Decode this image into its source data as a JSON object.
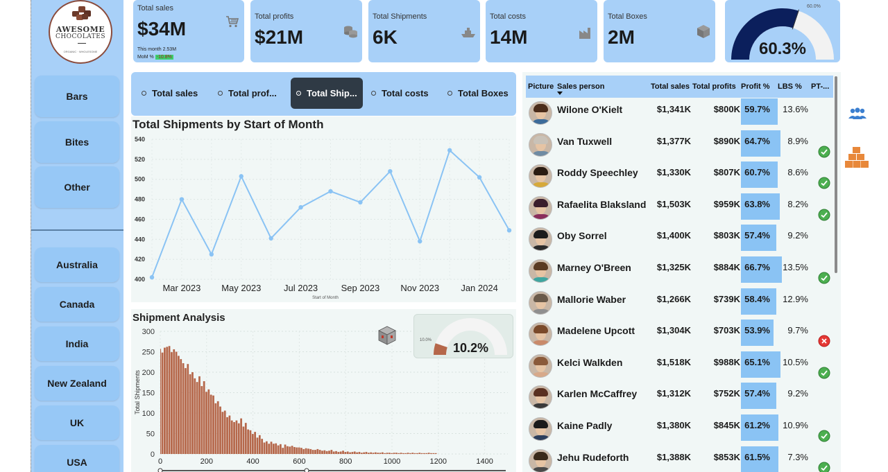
{
  "brand": {
    "line1": "AWESOME",
    "line2": "CHOCOLATES",
    "tagline": "ORGANIC · WHOLESOME"
  },
  "sidebar": {
    "products": [
      {
        "label": "Bars"
      },
      {
        "label": "Bites"
      },
      {
        "label": "Other"
      }
    ],
    "countries": [
      {
        "label": "Australia"
      },
      {
        "label": "Canada"
      },
      {
        "label": "India"
      },
      {
        "label": "New Zealand"
      },
      {
        "label": "UK"
      },
      {
        "label": "USA"
      }
    ]
  },
  "kpis": {
    "sales": {
      "label": "Total sales",
      "value": "$34M",
      "sub1": "This month 2.53M",
      "sub2_prefix": "MoM % ",
      "sub2_badge": "-10.8%",
      "icon": "cart-icon"
    },
    "profits": {
      "label": "Total profits",
      "value": "$21M",
      "icon": "coins-icon"
    },
    "shipments": {
      "label": "Total Shipments",
      "value": "6K",
      "icon": "ship-icon"
    },
    "costs": {
      "label": "Total costs",
      "value": "14M",
      "icon": "factory-icon"
    },
    "boxes": {
      "label": "Total Boxes",
      "value": "2M",
      "icon": "box-icon"
    }
  },
  "gauge": {
    "value": "60.3%",
    "target_label": "60.0%",
    "fill_fraction": 0.603,
    "fill_color": "#0b1f5c",
    "track_color": "#f2f2f2"
  },
  "slicer": {
    "options": [
      {
        "label": "Total sales"
      },
      {
        "label": "Total prof..."
      },
      {
        "label": "Total Ship..."
      },
      {
        "label": "Total costs"
      },
      {
        "label": "Total Boxes"
      }
    ],
    "selected": "Total Ship..."
  },
  "line_chart": {
    "title": "Total Shipments by Start of Month",
    "x_axis_label": "Start of Month",
    "tick_labels_x": [
      "Mar 2023",
      "May 2023",
      "Jul 2023",
      "Sep 2023",
      "Nov 2023",
      "Jan 2024"
    ],
    "tick_labels_y": [
      "540",
      "520",
      "500",
      "480",
      "460",
      "440",
      "420",
      "400"
    ]
  },
  "hist_chart": {
    "title": "Shipment Analysis",
    "y_axis_label": "Total Shipments",
    "tick_labels_x": [
      "0",
      "200",
      "400",
      "600",
      "800",
      "1000",
      "1200",
      "1400"
    ],
    "tick_labels_y": [
      "300",
      "250",
      "200",
      "150",
      "100",
      "50",
      "0"
    ]
  },
  "mini_gauge": {
    "value": "10.2%",
    "target_label": "10.0%",
    "fill_fraction": 0.102,
    "fill_color": "#b5674a"
  },
  "chart_data": [
    {
      "type": "line",
      "title": "Total Shipments by Start of Month",
      "xlabel": "Start of Month",
      "ylabel": "",
      "x": [
        "2023-02",
        "2023-03",
        "2023-04",
        "2023-05",
        "2023-06",
        "2023-07",
        "2023-08",
        "2023-09",
        "2023-10",
        "2023-11",
        "2023-12",
        "2024-01",
        "2024-02"
      ],
      "values": [
        402,
        480,
        425,
        503,
        441,
        472,
        488,
        477,
        508,
        438,
        529,
        502,
        449
      ],
      "ylim": [
        400,
        540
      ],
      "color": "#8ac3f4",
      "grid": true
    },
    {
      "type": "bar",
      "title": "Shipment Analysis",
      "xlabel": "",
      "ylabel": "Total Shipments",
      "bin_width": 10,
      "x_start": -5,
      "values": [
        257,
        248,
        260,
        262,
        264,
        249,
        256,
        250,
        240,
        232,
        222,
        210,
        220,
        195,
        200,
        185,
        176,
        190,
        166,
        178,
        152,
        158,
        145,
        143,
        124,
        129,
        116,
        103,
        106,
        90,
        94,
        82,
        78,
        82,
        75,
        87,
        67,
        76,
        60,
        58,
        49,
        54,
        40,
        46,
        37,
        28,
        31,
        25,
        30,
        25,
        26,
        21,
        24,
        15,
        23,
        19,
        18,
        20,
        17,
        16,
        16,
        15,
        12,
        14,
        13,
        12,
        10,
        10,
        12,
        10,
        8,
        9,
        7,
        8,
        10,
        6,
        7,
        5,
        6,
        8,
        5,
        6,
        4,
        5,
        6,
        4,
        5,
        3,
        4,
        5,
        3,
        4,
        3,
        4,
        3,
        3,
        4,
        2,
        3,
        3,
        2,
        3,
        3,
        2,
        3,
        2,
        2,
        3,
        2,
        3,
        2,
        2,
        3,
        2,
        2,
        2,
        3,
        2,
        2,
        2
      ],
      "ylim": [
        0,
        300
      ],
      "xlim": [
        0,
        1500
      ],
      "color": "#b5674a",
      "grid": true
    }
  ],
  "table": {
    "headers": {
      "picture": "Picture",
      "name": "Sales person",
      "sales": "Total sales",
      "profits": "Total profits",
      "profit_pct": "Profit %",
      "lbs": "LBS %",
      "pt": "PT-..."
    },
    "rows": [
      {
        "name": "Wilone O'Kielt",
        "sales": "$1,341K",
        "profits": "$800K",
        "profit_pct": "59.7%",
        "profit_frac": 0.597,
        "lbs": "13.6%",
        "status": "none",
        "hair": "#4a2c1a",
        "shirt": "#3c6b9a"
      },
      {
        "name": "Van Tuxwell",
        "sales": "$1,377K",
        "profits": "$890K",
        "profit_pct": "64.7%",
        "profit_frac": 0.647,
        "lbs": "8.9%",
        "status": "ok",
        "hair": "#c9c2b8",
        "shirt": "#6f8ba3"
      },
      {
        "name": "Roddy Speechley",
        "sales": "$1,330K",
        "profits": "$807K",
        "profit_pct": "60.7%",
        "profit_frac": 0.607,
        "lbs": "8.6%",
        "status": "ok",
        "hair": "#2a1c12",
        "shirt": "#d6a93a"
      },
      {
        "name": "Rafaelita Blaksland",
        "sales": "$1,503K",
        "profits": "$959K",
        "profit_pct": "63.8%",
        "profit_frac": 0.638,
        "lbs": "8.2%",
        "status": "ok",
        "hair": "#3a1d2c",
        "shirt": "#8a2e5c"
      },
      {
        "name": "Oby Sorrel",
        "sales": "$1,400K",
        "profits": "$803K",
        "profit_pct": "57.4%",
        "profit_frac": 0.574,
        "lbs": "9.2%",
        "status": "none",
        "hair": "#1c1c1c",
        "shirt": "#2b2b2b"
      },
      {
        "name": "Marney O'Breen",
        "sales": "$1,325K",
        "profits": "$884K",
        "profit_pct": "66.7%",
        "profit_frac": 0.667,
        "lbs": "13.5%",
        "status": "ok",
        "hair": "#5a3a22",
        "shirt": "#3fa6a0"
      },
      {
        "name": "Mallorie Waber",
        "sales": "$1,266K",
        "profits": "$739K",
        "profit_pct": "58.4%",
        "profit_frac": 0.584,
        "lbs": "12.9%",
        "status": "none",
        "hair": "#6a5a4a",
        "shirt": "#8f8f8f"
      },
      {
        "name": "Madelene Upcott",
        "sales": "$1,304K",
        "profits": "$703K",
        "profit_pct": "53.9%",
        "profit_frac": 0.539,
        "lbs": "9.7%",
        "status": "bad",
        "hair": "#7a4a2a",
        "shirt": "#c98a6a"
      },
      {
        "name": "Kelci Walkden",
        "sales": "$1,518K",
        "profits": "$988K",
        "profit_pct": "65.1%",
        "profit_frac": 0.651,
        "lbs": "10.5%",
        "status": "ok",
        "hair": "#8a5a3a",
        "shirt": "#d7a98a"
      },
      {
        "name": "Karlen McCaffrey",
        "sales": "$1,312K",
        "profits": "$752K",
        "profit_pct": "57.4%",
        "profit_frac": 0.574,
        "lbs": "9.2%",
        "status": "none",
        "hair": "#5a3020",
        "shirt": "#3a3a3a"
      },
      {
        "name": "Kaine Padly",
        "sales": "$1,380K",
        "profits": "$845K",
        "profit_pct": "61.2%",
        "profit_frac": 0.612,
        "lbs": "10.9%",
        "status": "ok",
        "hair": "#1a1a1a",
        "shirt": "#2c3e5c"
      },
      {
        "name": "Jehu Rudeforth",
        "sales": "$1,388K",
        "profits": "$853K",
        "profit_pct": "61.5%",
        "profit_frac": 0.615,
        "lbs": "7.3%",
        "status": "ok",
        "hair": "#3a2a1a",
        "shirt": "#4a4a4a"
      }
    ]
  },
  "icons": {
    "people": "people-icon",
    "boxes": "stacked-boxes-icon"
  }
}
